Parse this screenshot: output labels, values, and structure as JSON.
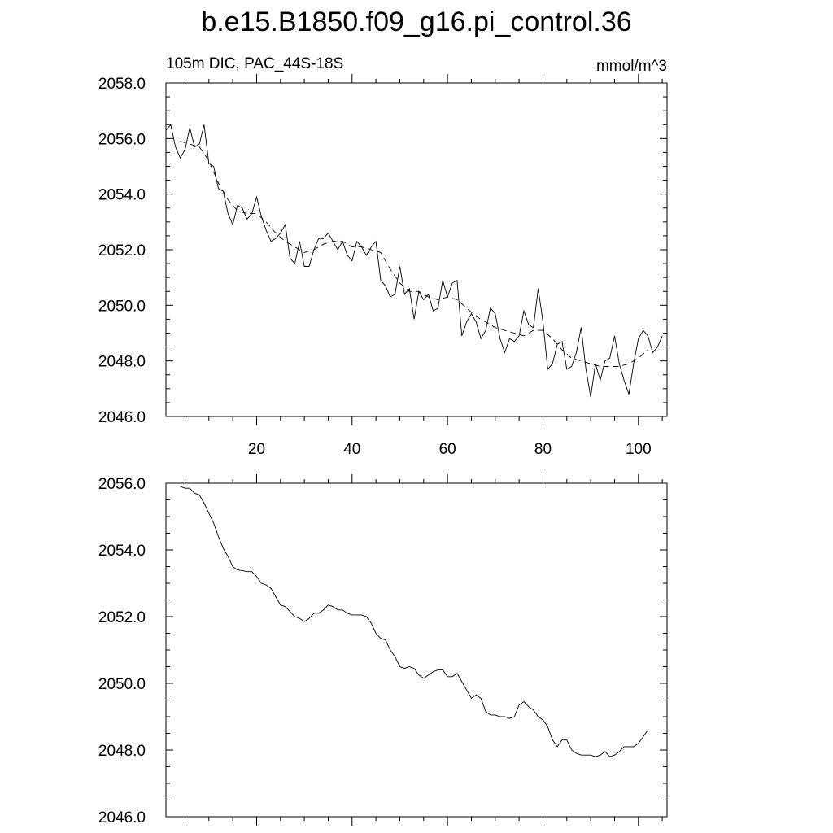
{
  "title": "b.e15.B1850.f09_g16.pi_control.36",
  "chart_data": [
    {
      "type": "line",
      "left_label": "105m DIC, PAC_44S-18S",
      "right_label": "mmol/m^3",
      "xlim": [
        1,
        106
      ],
      "ylim": [
        2046,
        2058
      ],
      "x_ticks": [
        20,
        40,
        60,
        80,
        100
      ],
      "x_tick_labels": [
        "20",
        "40",
        "60",
        "80",
        "100"
      ],
      "y_ticks": [
        2046,
        2048,
        2050,
        2052,
        2054,
        2056,
        2058
      ],
      "y_tick_labels": [
        "2046.0",
        "2048.0",
        "2050.0",
        "2052.0",
        "2054.0",
        "2056.0",
        "2058.0"
      ],
      "series": [
        {
          "style": "solid",
          "x": [
            1,
            2,
            3,
            4,
            5,
            6,
            7,
            8,
            9,
            10,
            11,
            12,
            13,
            14,
            15,
            16,
            17,
            18,
            19,
            20,
            21,
            22,
            23,
            24,
            25,
            26,
            27,
            28,
            29,
            30,
            31,
            32,
            33,
            34,
            35,
            36,
            37,
            38,
            39,
            40,
            41,
            42,
            43,
            44,
            45,
            46,
            47,
            48,
            49,
            50,
            51,
            52,
            53,
            54,
            55,
            56,
            57,
            58,
            59,
            60,
            61,
            62,
            63,
            64,
            65,
            66,
            67,
            68,
            69,
            70,
            71,
            72,
            73,
            74,
            75,
            76,
            77,
            78,
            79,
            80,
            81,
            82,
            83,
            84,
            85,
            86,
            87,
            88,
            89,
            90,
            91,
            92,
            93,
            94,
            95,
            96,
            97,
            98,
            99,
            100,
            101,
            102,
            103,
            104,
            105
          ],
          "values": [
            2056.3,
            2056.5,
            2055.7,
            2055.3,
            2055.6,
            2056.4,
            2055.7,
            2055.8,
            2056.5,
            2055.1,
            2055.0,
            2054.2,
            2054.1,
            2053.3,
            2052.9,
            2053.6,
            2053.5,
            2053.1,
            2053.3,
            2053.9,
            2053.2,
            2052.7,
            2052.3,
            2052.4,
            2052.6,
            2052.9,
            2051.7,
            2051.5,
            2052.3,
            2051.4,
            2051.4,
            2052.0,
            2052.4,
            2052.4,
            2052.6,
            2052.3,
            2052.0,
            2052.3,
            2051.8,
            2051.6,
            2052.3,
            2052.1,
            2051.8,
            2052.1,
            2052.3,
            2050.9,
            2050.7,
            2050.3,
            2050.4,
            2051.4,
            2050.4,
            2050.6,
            2049.5,
            2050.5,
            2050.2,
            2050.4,
            2049.8,
            2049.9,
            2050.9,
            2050.3,
            2050.8,
            2050.9,
            2048.9,
            2049.4,
            2049.7,
            2049.4,
            2048.8,
            2049.1,
            2049.9,
            2049.7,
            2048.8,
            2048.3,
            2048.8,
            2048.7,
            2048.9,
            2049.8,
            2049.3,
            2049.2,
            2050.6,
            2049.4,
            2047.7,
            2047.9,
            2048.6,
            2048.7,
            2047.7,
            2047.8,
            2048.3,
            2049.2,
            2047.7,
            2046.7,
            2047.9,
            2047.3,
            2048.0,
            2048.1,
            2048.9,
            2047.9,
            2047.3,
            2046.8,
            2047.9,
            2048.8,
            2049.1,
            2048.9,
            2048.3,
            2048.5,
            2048.9
          ]
        },
        {
          "style": "dashed",
          "x": [
            4,
            6,
            8,
            10,
            12,
            14,
            16,
            18,
            20,
            22,
            24,
            26,
            28,
            30,
            32,
            34,
            36,
            38,
            40,
            42,
            44,
            46,
            48,
            50,
            52,
            54,
            56,
            58,
            60,
            62,
            64,
            66,
            68,
            70,
            72,
            74,
            76,
            78,
            80,
            82,
            84,
            86,
            88,
            90,
            92,
            94,
            96,
            98,
            100,
            102
          ],
          "values": [
            2055.9,
            2055.8,
            2055.7,
            2055.2,
            2054.4,
            2053.8,
            2053.4,
            2053.3,
            2053.3,
            2053.0,
            2052.6,
            2052.3,
            2052.1,
            2051.9,
            2052.0,
            2052.2,
            2052.3,
            2052.3,
            2052.1,
            2052.1,
            2052.0,
            2051.9,
            2051.3,
            2050.8,
            2050.5,
            2050.5,
            2050.3,
            2050.2,
            2050.3,
            2050.2,
            2049.9,
            2049.6,
            2049.4,
            2049.2,
            2049.1,
            2049.0,
            2048.9,
            2049.1,
            2049.1,
            2048.8,
            2048.4,
            2048.1,
            2048.0,
            2047.9,
            2047.8,
            2047.8,
            2047.8,
            2047.9,
            2048.1,
            2048.4
          ]
        }
      ]
    },
    {
      "type": "line",
      "xlim": [
        1,
        106
      ],
      "ylim": [
        2046,
        2056
      ],
      "x_ticks": [
        20,
        40,
        60,
        80,
        100
      ],
      "y_ticks": [
        2046,
        2048,
        2050,
        2052,
        2054,
        2056
      ],
      "y_tick_labels": [
        "2046.0",
        "2048.0",
        "2050.0",
        "2052.0",
        "2054.0",
        "2056.0"
      ],
      "series": [
        {
          "style": "solid",
          "x": [
            4,
            5,
            6,
            7,
            8,
            9,
            10,
            11,
            12,
            13,
            14,
            15,
            16,
            17,
            18,
            19,
            20,
            21,
            22,
            23,
            24,
            25,
            26,
            27,
            28,
            29,
            30,
            31,
            32,
            33,
            34,
            35,
            36,
            37,
            38,
            39,
            40,
            41,
            42,
            43,
            44,
            45,
            46,
            47,
            48,
            49,
            50,
            51,
            52,
            53,
            54,
            55,
            56,
            57,
            58,
            59,
            60,
            61,
            62,
            63,
            64,
            65,
            66,
            67,
            68,
            69,
            70,
            71,
            72,
            73,
            74,
            75,
            76,
            77,
            78,
            79,
            80,
            81,
            82,
            83,
            84,
            85,
            86,
            87,
            88,
            89,
            90,
            91,
            92,
            93,
            94,
            95,
            96,
            97,
            98,
            99,
            100,
            101,
            102
          ],
          "values": [
            2055.9,
            2055.85,
            2055.85,
            2055.7,
            2055.65,
            2055.4,
            2055.1,
            2054.8,
            2054.4,
            2054.05,
            2053.8,
            2053.5,
            2053.4,
            2053.38,
            2053.35,
            2053.35,
            2053.2,
            2053.0,
            2052.95,
            2052.85,
            2052.6,
            2052.35,
            2052.3,
            2052.15,
            2052.0,
            2051.95,
            2051.85,
            2051.95,
            2052.1,
            2052.1,
            2052.2,
            2052.35,
            2052.3,
            2052.2,
            2052.2,
            2052.1,
            2052.05,
            2052.05,
            2052.05,
            2052.0,
            2051.8,
            2051.5,
            2051.35,
            2051.3,
            2051.0,
            2050.8,
            2050.5,
            2050.45,
            2050.5,
            2050.45,
            2050.25,
            2050.15,
            2050.25,
            2050.35,
            2050.4,
            2050.4,
            2050.2,
            2050.2,
            2050.3,
            2050.05,
            2049.8,
            2049.55,
            2049.65,
            2049.55,
            2049.15,
            2049.05,
            2049.05,
            2049.0,
            2049.0,
            2048.95,
            2049.0,
            2049.35,
            2049.45,
            2049.3,
            2049.2,
            2049.0,
            2048.9,
            2048.7,
            2048.3,
            2048.1,
            2048.3,
            2048.3,
            2048.0,
            2047.9,
            2047.85,
            2047.85,
            2047.85,
            2047.8,
            2047.85,
            2047.95,
            2047.8,
            2047.85,
            2047.95,
            2048.1,
            2048.1,
            2048.1,
            2048.2,
            2048.4,
            2048.6
          ]
        }
      ]
    }
  ]
}
